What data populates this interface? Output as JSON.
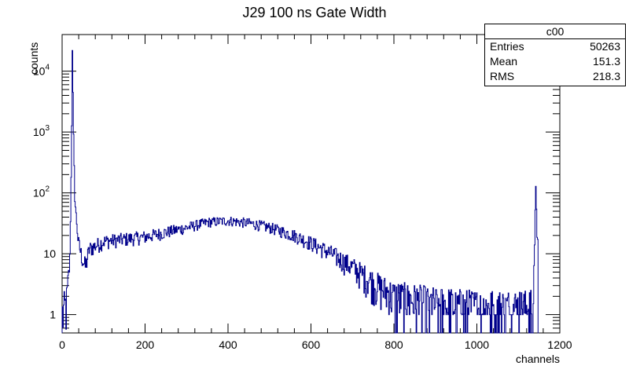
{
  "chart_data": {
    "type": "histogram",
    "title": "J29 100 ns Gate Width",
    "xlabel": "channels",
    "ylabel": "counts",
    "xlim": [
      0,
      1200
    ],
    "ylim": [
      0.5,
      40000
    ],
    "log_y": true,
    "line_color": "#00008b",
    "x_ticks": [
      0,
      200,
      400,
      600,
      800,
      1000,
      1200
    ],
    "y_ticks": [
      {
        "value": 1,
        "label": "1"
      },
      {
        "value": 10,
        "label": "10"
      },
      {
        "value": 100,
        "label": "10",
        "exp": "2"
      },
      {
        "value": 1000,
        "label": "10",
        "exp": "3"
      },
      {
        "value": 10000,
        "label": "10",
        "exp": "4"
      }
    ],
    "profile": [
      [
        0,
        1
      ],
      [
        10,
        1.5
      ],
      [
        18,
        8
      ],
      [
        22,
        500
      ],
      [
        24,
        22000
      ],
      [
        27,
        900
      ],
      [
        30,
        80
      ],
      [
        38,
        16
      ],
      [
        45,
        10
      ],
      [
        55,
        6
      ],
      [
        65,
        12
      ],
      [
        100,
        16
      ],
      [
        200,
        19
      ],
      [
        300,
        27
      ],
      [
        350,
        33
      ],
      [
        400,
        35
      ],
      [
        450,
        32
      ],
      [
        500,
        27
      ],
      [
        560,
        20
      ],
      [
        600,
        15
      ],
      [
        650,
        10
      ],
      [
        700,
        6
      ],
      [
        760,
        3
      ],
      [
        800,
        2
      ],
      [
        900,
        1.5
      ],
      [
        1000,
        1.3
      ],
      [
        1100,
        1.3
      ],
      [
        1135,
        1.3
      ],
      [
        1140,
        50
      ],
      [
        1142,
        160
      ],
      [
        1144,
        22
      ],
      [
        1147,
        0
      ]
    ],
    "stats": {
      "title": "c00",
      "rows": [
        {
          "label": "Entries",
          "value": "50263"
        },
        {
          "label": "Mean",
          "value": "151.3"
        },
        {
          "label": "RMS",
          "value": "218.3"
        }
      ]
    }
  }
}
